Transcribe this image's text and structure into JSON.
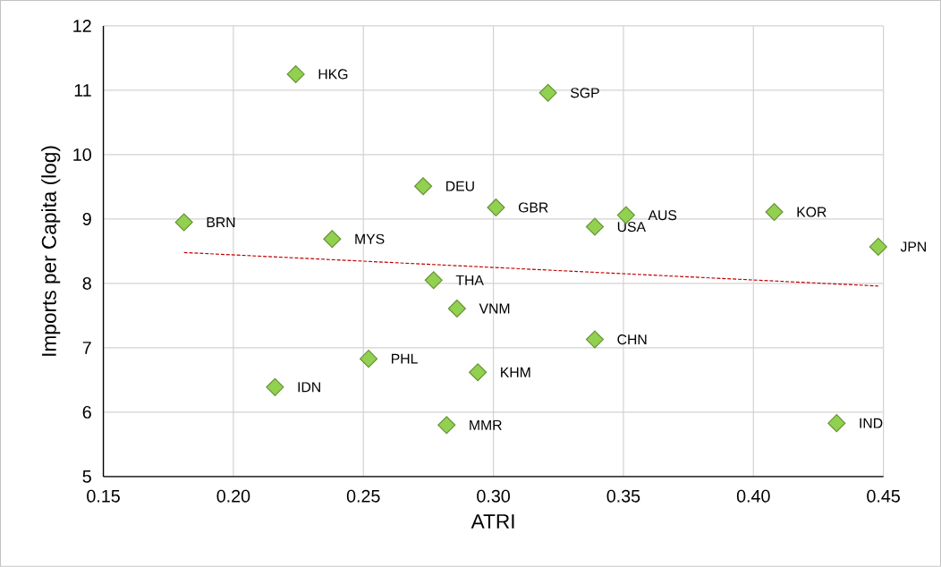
{
  "chart_data": {
    "type": "scatter",
    "xlabel": "ATRI",
    "ylabel": "Imports per Capita (log)",
    "xlim": [
      0.15,
      0.45
    ],
    "xticks": [
      {
        "value": 0.15,
        "label": "0.15"
      },
      {
        "value": 0.2,
        "label": "0.20"
      },
      {
        "value": 0.25,
        "label": "0.25"
      },
      {
        "value": 0.3,
        "label": "0.30"
      },
      {
        "value": 0.35,
        "label": "0.35"
      },
      {
        "value": 0.4,
        "label": "0.40"
      },
      {
        "value": 0.45,
        "label": "0.45"
      }
    ],
    "ylim": [
      5,
      12
    ],
    "yticks": [
      5,
      6,
      7,
      8,
      9,
      10,
      11,
      12
    ],
    "grid": true,
    "series": [
      {
        "color": "#92d050",
        "marker": "diamond",
        "x": [
          0.224,
          0.321,
          0.273,
          0.301,
          0.351,
          0.339,
          0.408,
          0.448,
          0.181,
          0.238,
          0.277,
          0.286,
          0.339,
          0.252,
          0.294,
          0.216,
          0.282,
          0.432
        ],
        "values": [
          11.25,
          10.96,
          9.51,
          9.18,
          9.06,
          8.88,
          9.11,
          8.57,
          8.95,
          8.69,
          8.05,
          7.61,
          7.13,
          6.83,
          6.62,
          6.39,
          5.8,
          5.83
        ]
      },
      {
        "type": "line",
        "color": "#c00000",
        "line_style": "dashed",
        "marker": "none",
        "x": [
          0.181,
          0.448
        ],
        "values": [
          8.48,
          7.96
        ]
      }
    ],
    "annotations": [
      {
        "text": "HKG",
        "x": 0.224,
        "y": 11.25
      },
      {
        "text": "SGP",
        "x": 0.321,
        "y": 10.96
      },
      {
        "text": "DEU",
        "x": 0.273,
        "y": 9.51
      },
      {
        "text": "GBR",
        "x": 0.301,
        "y": 9.18
      },
      {
        "text": "AUS",
        "x": 0.351,
        "y": 9.06
      },
      {
        "text": "USA",
        "x": 0.339,
        "y": 8.88
      },
      {
        "text": "KOR",
        "x": 0.408,
        "y": 9.11
      },
      {
        "text": "JPN",
        "x": 0.448,
        "y": 8.57
      },
      {
        "text": "BRN",
        "x": 0.181,
        "y": 8.95
      },
      {
        "text": "MYS",
        "x": 0.238,
        "y": 8.69
      },
      {
        "text": "THA",
        "x": 0.277,
        "y": 8.05
      },
      {
        "text": "VNM",
        "x": 0.286,
        "y": 7.61
      },
      {
        "text": "CHN",
        "x": 0.339,
        "y": 7.13
      },
      {
        "text": "PHL",
        "x": 0.252,
        "y": 6.83
      },
      {
        "text": "KHM",
        "x": 0.294,
        "y": 6.62
      },
      {
        "text": "IDN",
        "x": 0.216,
        "y": 6.39
      },
      {
        "text": "MMR",
        "x": 0.282,
        "y": 5.8
      },
      {
        "text": "IND",
        "x": 0.432,
        "y": 5.83
      }
    ]
  }
}
